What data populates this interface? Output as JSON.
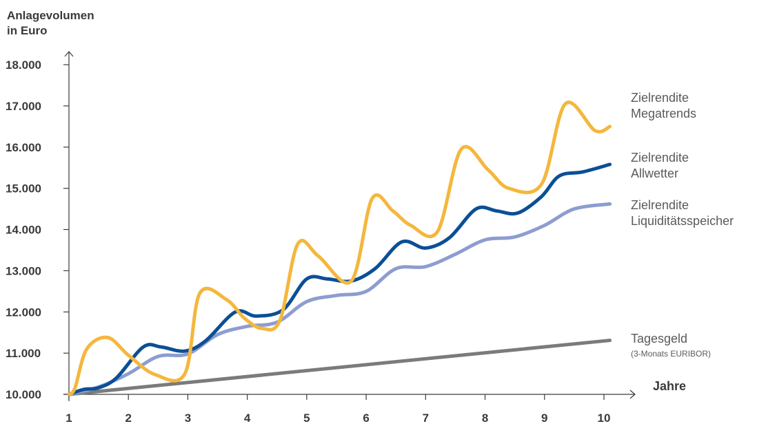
{
  "chart_data": {
    "type": "line",
    "ylabel_lines": [
      "Anlagevolumen",
      "in Euro"
    ],
    "xlabel": "Jahre",
    "xlim": [
      1,
      10
    ],
    "ylim": [
      10000,
      18000
    ],
    "x_ticks": [
      "1",
      "2",
      "3",
      "4",
      "5",
      "6",
      "7",
      "8",
      "9",
      "10"
    ],
    "y_ticks": [
      "10.000",
      "11.000",
      "12.000",
      "13.000",
      "14.000",
      "15.000",
      "16.000",
      "17.000",
      "18.000"
    ],
    "series": [
      {
        "key": "megatrends",
        "label_lines": [
          "Zielrendite",
          "Megatrends"
        ],
        "color": "#f4b73d",
        "x": [
          1,
          1.1,
          1.3,
          1.65,
          2.0,
          2.45,
          2.95,
          3.2,
          3.65,
          3.95,
          4.25,
          4.55,
          4.85,
          5.2,
          5.75,
          6.1,
          6.45,
          6.75,
          7.2,
          7.6,
          8.05,
          8.4,
          8.95,
          9.35,
          9.85,
          10.1
        ],
        "values": [
          10000,
          10150,
          11100,
          11380,
          10950,
          10480,
          10500,
          12450,
          12300,
          11850,
          11600,
          11800,
          13650,
          13350,
          12750,
          14750,
          14450,
          14100,
          13950,
          15950,
          15450,
          15000,
          15100,
          17050,
          16400,
          16500
        ]
      },
      {
        "key": "allwetter",
        "label_lines": [
          "Zielrendite",
          "Allwetter"
        ],
        "color": "#0b4f96",
        "x": [
          1,
          1.25,
          1.5,
          1.8,
          2.25,
          2.55,
          2.95,
          3.3,
          3.8,
          4.15,
          4.6,
          5.0,
          5.35,
          5.75,
          6.15,
          6.6,
          7.0,
          7.4,
          7.85,
          8.2,
          8.55,
          8.95,
          9.25,
          9.65,
          10.1
        ],
        "values": [
          10000,
          10120,
          10160,
          10400,
          11150,
          11150,
          11050,
          11300,
          12000,
          11900,
          12050,
          12800,
          12800,
          12750,
          13050,
          13700,
          13550,
          13800,
          14500,
          14450,
          14400,
          14800,
          15300,
          15400,
          15580
        ]
      },
      {
        "key": "liquiditaet",
        "label_lines": [
          "Zielrendite",
          "Liquiditätsspeicher"
        ],
        "color": "#8d9dd0",
        "x": [
          1,
          1.5,
          2.0,
          2.5,
          3.0,
          3.5,
          4.0,
          4.5,
          5.0,
          5.5,
          6.0,
          6.5,
          7.0,
          7.5,
          8.0,
          8.5,
          9.0,
          9.5,
          10.1
        ],
        "values": [
          10000,
          10180,
          10500,
          10920,
          10980,
          11450,
          11650,
          11750,
          12250,
          12400,
          12500,
          13050,
          13100,
          13400,
          13750,
          13820,
          14100,
          14500,
          14620
        ]
      },
      {
        "key": "tagesgeld",
        "label_lines": [
          "Tagesgeld",
          "(3-Monats EURIBOR)"
        ],
        "color": "#7b7b7b",
        "x": [
          1,
          10.1
        ],
        "values": [
          10000,
          11310
        ]
      }
    ],
    "grid": false,
    "legend": "inline-right"
  }
}
